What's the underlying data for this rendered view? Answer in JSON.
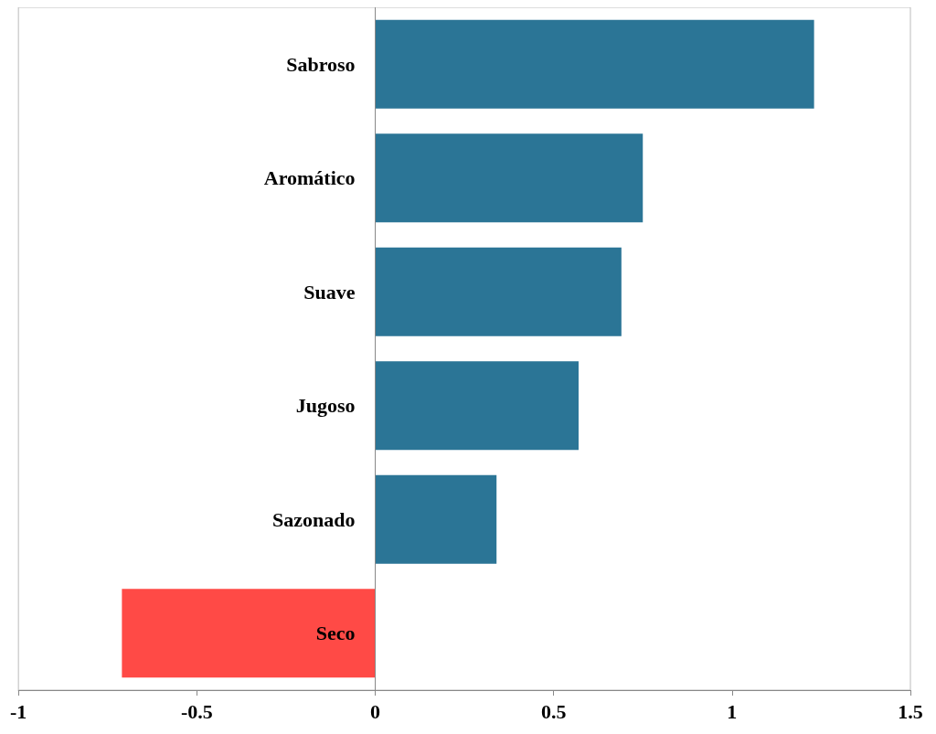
{
  "chart_data": {
    "type": "bar",
    "orientation": "horizontal",
    "categories": [
      "Sabroso",
      "Aromático",
      "Suave",
      "Jugoso",
      "Sazonado",
      "Seco"
    ],
    "values": [
      1.23,
      0.75,
      0.69,
      0.57,
      0.34,
      -0.71
    ],
    "colors": [
      "#2b7596",
      "#2b7596",
      "#2b7596",
      "#2b7596",
      "#2b7596",
      "#ff4a46"
    ],
    "xlim": [
      -1,
      1.5
    ],
    "xticks": [
      -1,
      -0.5,
      0,
      0.5,
      1,
      1.5
    ],
    "grid": false
  }
}
